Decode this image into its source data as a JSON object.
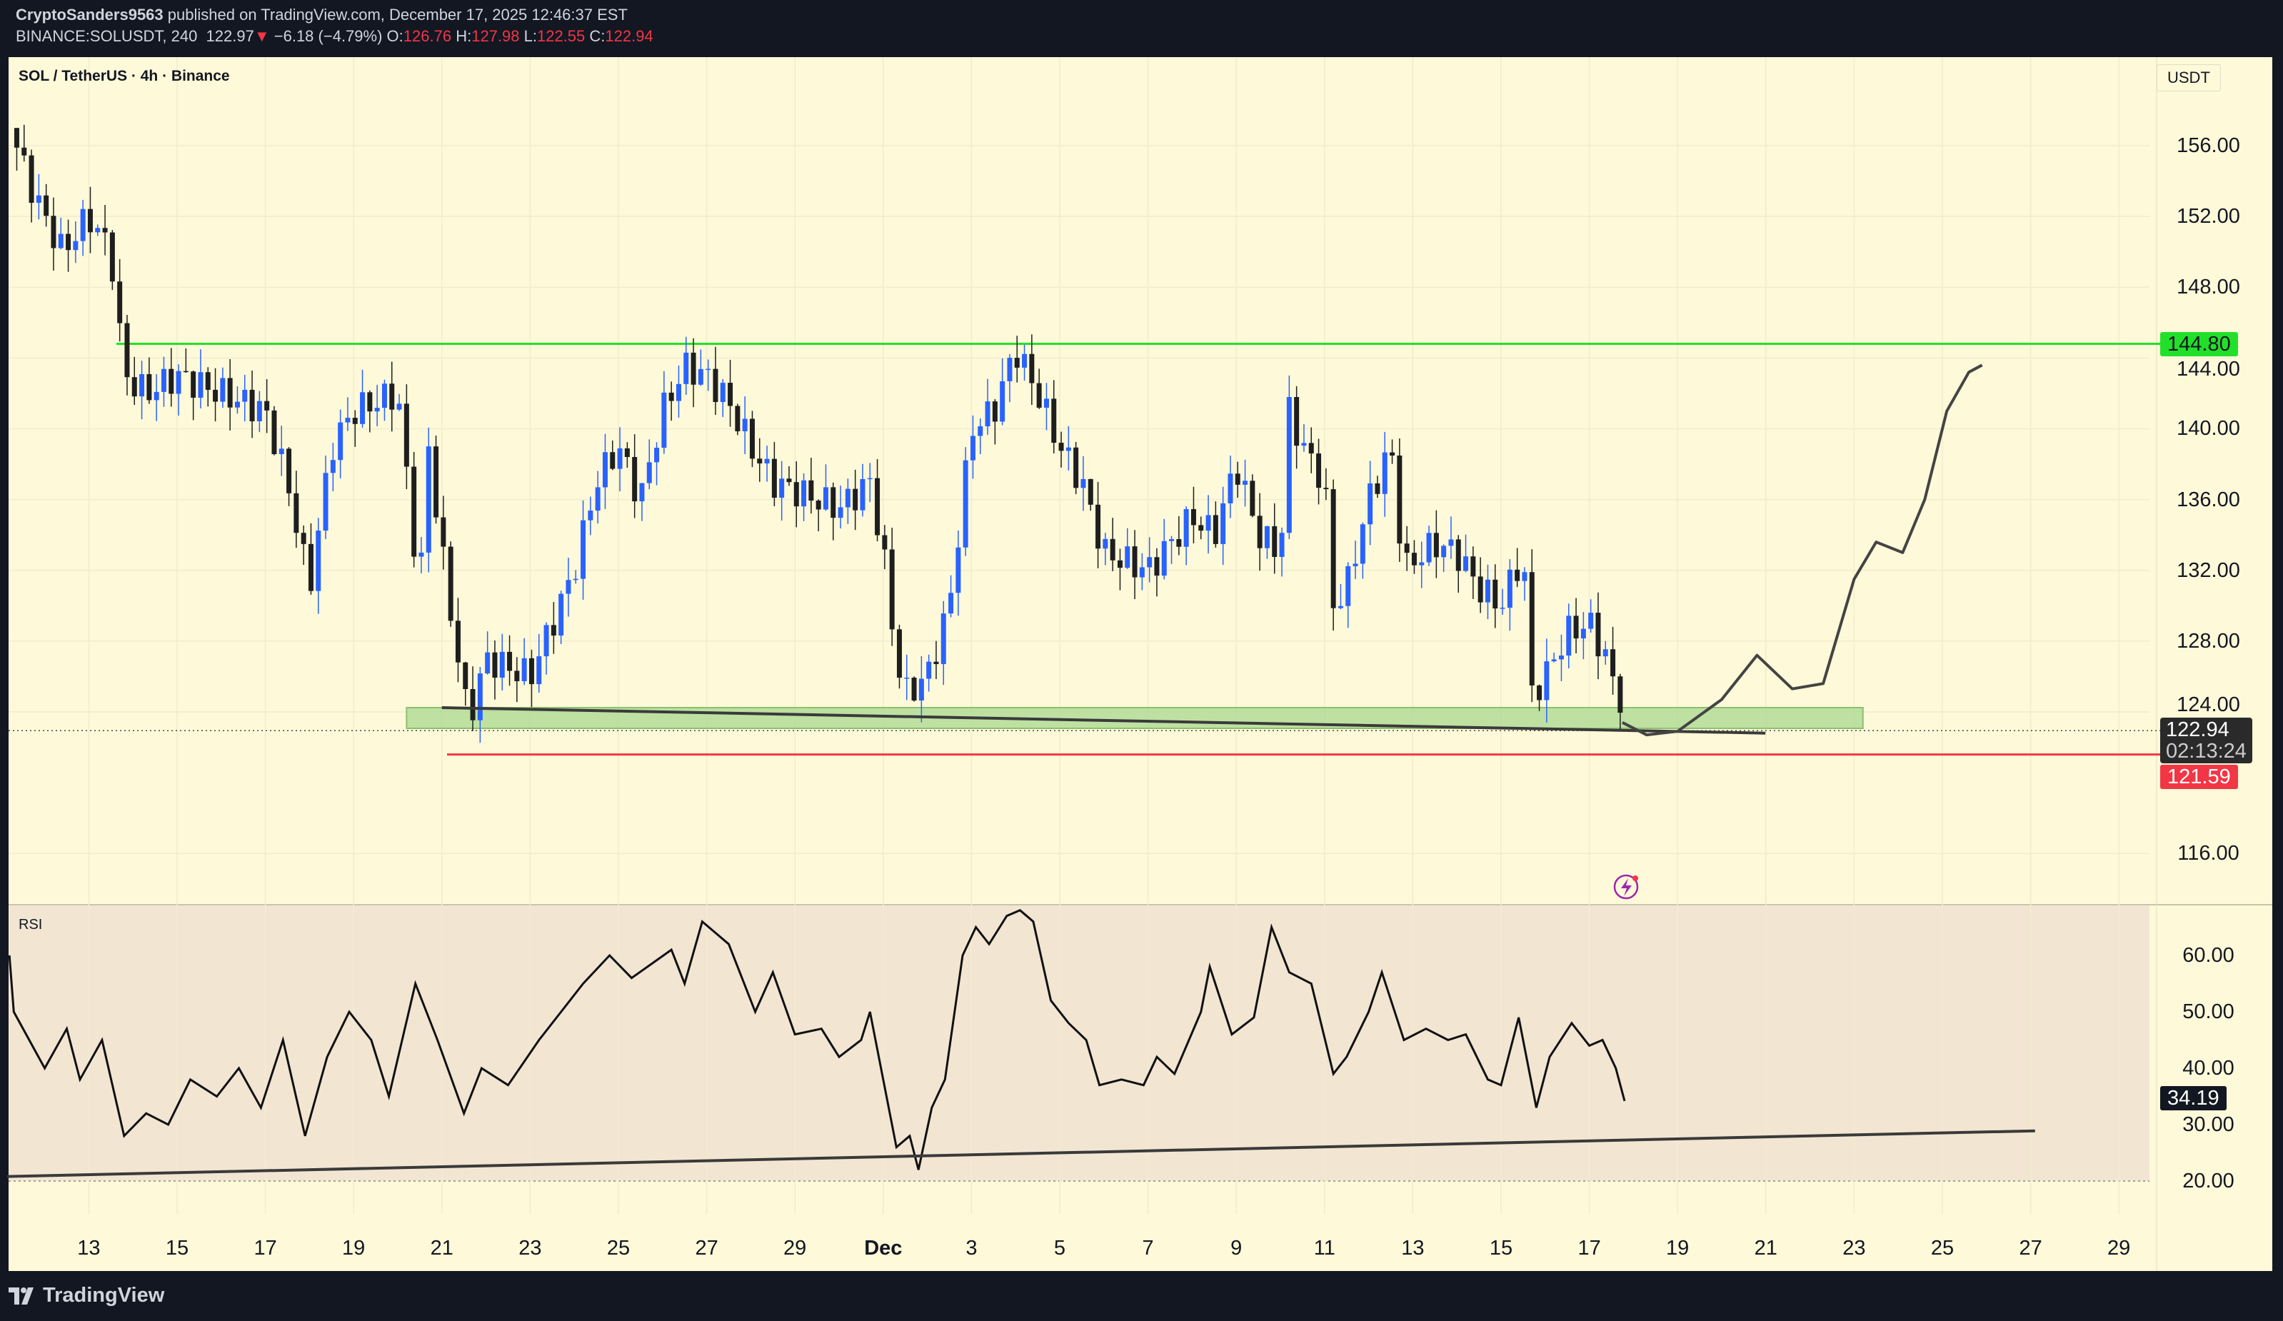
{
  "header": {
    "author": "CryptoSanders9563",
    "published": "published on TradingView.com, December 17, 2025 12:46:37 EST",
    "symbol": "BINANCE:SOLUSDT, 240",
    "last": "122.97",
    "change": "−6.18 (−4.79%)",
    "o_label": "O:",
    "o": "126.76",
    "h_label": "H:",
    "h": "127.98",
    "l_label": "L:",
    "l": "122.55",
    "c_label": "C:",
    "c": "122.94"
  },
  "chart_title": "SOL / TetherUS · 4h · Binance",
  "currency": "USDT",
  "rsi_label": "RSI",
  "logo": "TradingView",
  "colors": {
    "up": "#2962ff",
    "down": "#1e1e1e",
    "resistance": "#22e02a",
    "support": "#f23645",
    "zone": "#a8d890",
    "bg": "#fef9d8",
    "rsi_bg": "#f2e6d3"
  },
  "tags": {
    "resistance": "144.80",
    "last": "122.94",
    "countdown": "02:13:24",
    "support": "121.59",
    "rsi": "34.19"
  },
  "chart_data": [
    {
      "type": "candlestick",
      "title": "SOL / TetherUS · 4h · Binance",
      "x_unit": "days since Nov 13",
      "price_axis": [
        "156.00",
        "152.00",
        "148.00",
        "144.00",
        "140.00",
        "136.00",
        "132.00",
        "128.00",
        "124.00",
        "116.00"
      ],
      "price_ticks": [
        156,
        152,
        148,
        144,
        140,
        136,
        132,
        128,
        124,
        116
      ],
      "time_axis": [
        {
          "t": 0,
          "label": "13"
        },
        {
          "t": 2,
          "label": "15"
        },
        {
          "t": 4,
          "label": "17"
        },
        {
          "t": 6,
          "label": "19"
        },
        {
          "t": 8,
          "label": "21"
        },
        {
          "t": 10,
          "label": "23"
        },
        {
          "t": 12,
          "label": "25"
        },
        {
          "t": 14,
          "label": "27"
        },
        {
          "t": 16,
          "label": "29"
        },
        {
          "t": 18,
          "label": "Dec"
        },
        {
          "t": 20,
          "label": "3"
        },
        {
          "t": 22,
          "label": "5"
        },
        {
          "t": 24,
          "label": "7"
        },
        {
          "t": 26,
          "label": "9"
        },
        {
          "t": 28,
          "label": "11"
        },
        {
          "t": 30,
          "label": "13"
        },
        {
          "t": 32,
          "label": "15"
        },
        {
          "t": 34,
          "label": "17"
        },
        {
          "t": 36,
          "label": "19"
        },
        {
          "t": 38,
          "label": "21"
        },
        {
          "t": 40,
          "label": "23"
        },
        {
          "t": 42,
          "label": "25"
        },
        {
          "t": 44,
          "label": "27"
        },
        {
          "t": 46,
          "label": "29"
        }
      ],
      "close_path": [
        [
          -1.8,
          157
        ],
        [
          -1.2,
          153
        ],
        [
          -0.6,
          150
        ],
        [
          0,
          152
        ],
        [
          0.5,
          150
        ],
        [
          0.8,
          143
        ],
        [
          1.3,
          142
        ],
        [
          2,
          143
        ],
        [
          3,
          142
        ],
        [
          4,
          141
        ],
        [
          4.5,
          137
        ],
        [
          5,
          131
        ],
        [
          5.5,
          139
        ],
        [
          6,
          141
        ],
        [
          7,
          142
        ],
        [
          7.3,
          135
        ],
        [
          7.5,
          131
        ],
        [
          7.7,
          139
        ],
        [
          8,
          133
        ],
        [
          8.3,
          128
        ],
        [
          8.6,
          123.5
        ],
        [
          9,
          127
        ],
        [
          10,
          126
        ],
        [
          10.5,
          129
        ],
        [
          11,
          132
        ],
        [
          11.5,
          137
        ],
        [
          12,
          139
        ],
        [
          12.5,
          136
        ],
        [
          13,
          141
        ],
        [
          13.5,
          143.5
        ],
        [
          14,
          143
        ],
        [
          14.5,
          141.5
        ],
        [
          15,
          139
        ],
        [
          15.5,
          137
        ],
        [
          16,
          136.5
        ],
        [
          17,
          135.5
        ],
        [
          17.7,
          137
        ],
        [
          18,
          133
        ],
        [
          18.3,
          127
        ],
        [
          18.5,
          125
        ],
        [
          19,
          126
        ],
        [
          19.5,
          130
        ],
        [
          20,
          140
        ],
        [
          20.5,
          141
        ],
        [
          21,
          144.5
        ],
        [
          21.5,
          142
        ],
        [
          22,
          139
        ],
        [
          22.5,
          137
        ],
        [
          23,
          133
        ],
        [
          23.5,
          132.5
        ],
        [
          24,
          132
        ],
        [
          25,
          135
        ],
        [
          25.5,
          134
        ],
        [
          26,
          138
        ],
        [
          26.5,
          134
        ],
        [
          27,
          133
        ],
        [
          27.2,
          141
        ],
        [
          27.5,
          139
        ],
        [
          28,
          137
        ],
        [
          28.2,
          130
        ],
        [
          28.5,
          131
        ],
        [
          29,
          136
        ],
        [
          29.5,
          139
        ],
        [
          29.8,
          132
        ],
        [
          30,
          132.5
        ],
        [
          30.5,
          133.5
        ],
        [
          31,
          133
        ],
        [
          31.5,
          131
        ],
        [
          32,
          130
        ],
        [
          32.5,
          133
        ],
        [
          32.7,
          125
        ],
        [
          33,
          126
        ],
        [
          33.5,
          128.5
        ],
        [
          34,
          129
        ],
        [
          34.4,
          127
        ],
        [
          34.8,
          122.94
        ]
      ],
      "levels": {
        "resistance": 144.8,
        "support": 121.59,
        "last": 122.94
      },
      "zone": {
        "t0": 7.2,
        "t1": 40.2,
        "low": 123.07,
        "high": 124.24
      },
      "trendline": [
        [
          7.999,
          124.24
        ],
        [
          37.99,
          122.8
        ]
      ],
      "projection": [
        [
          34.75,
          123.4
        ],
        [
          35.3,
          122.7
        ],
        [
          36,
          122.9
        ],
        [
          37,
          124.7
        ],
        [
          37.8,
          127.2
        ],
        [
          38.6,
          125.3
        ],
        [
          39.3,
          125.6
        ],
        [
          40,
          131.5
        ],
        [
          40.5,
          133.6
        ],
        [
          41.1,
          133.0
        ],
        [
          41.6,
          136
        ],
        [
          42.1,
          141
        ],
        [
          42.6,
          143.2
        ],
        [
          42.9,
          143.6
        ]
      ],
      "price_range": [
        112.5,
        161.5
      ]
    },
    {
      "type": "line",
      "title": "RSI",
      "y_axis": [
        "60.00",
        "50.00",
        "40.00",
        "30.00",
        "20.00"
      ],
      "y_ticks": [
        60,
        50,
        40,
        30,
        20
      ],
      "ylim": [
        15.5,
        70
      ],
      "values": [
        [
          -1.8,
          60
        ],
        [
          -1.7,
          50
        ],
        [
          -1.0,
          40
        ],
        [
          -0.5,
          47
        ],
        [
          -0.2,
          38
        ],
        [
          0.3,
          45
        ],
        [
          0.8,
          28
        ],
        [
          1.3,
          32
        ],
        [
          1.8,
          30
        ],
        [
          2.3,
          38
        ],
        [
          2.9,
          35
        ],
        [
          3.4,
          40
        ],
        [
          3.9,
          33
        ],
        [
          4.4,
          45
        ],
        [
          4.9,
          28
        ],
        [
          5.4,
          42
        ],
        [
          5.9,
          50
        ],
        [
          6.4,
          45
        ],
        [
          6.8,
          35
        ],
        [
          7.4,
          55
        ],
        [
          7.9,
          45
        ],
        [
          8.5,
          32
        ],
        [
          8.9,
          40
        ],
        [
          9.5,
          37
        ],
        [
          10.2,
          45
        ],
        [
          10.7,
          50
        ],
        [
          11.2,
          55
        ],
        [
          11.8,
          60
        ],
        [
          12.3,
          56
        ],
        [
          13.2,
          61
        ],
        [
          13.5,
          55
        ],
        [
          13.9,
          66
        ],
        [
          14.5,
          62
        ],
        [
          15.1,
          50
        ],
        [
          15.5,
          57
        ],
        [
          16.0,
          46
        ],
        [
          16.6,
          47
        ],
        [
          17.0,
          42
        ],
        [
          17.5,
          45
        ],
        [
          17.7,
          50
        ],
        [
          18.0,
          38
        ],
        [
          18.3,
          26
        ],
        [
          18.6,
          28
        ],
        [
          18.8,
          22
        ],
        [
          19.1,
          33
        ],
        [
          19.4,
          38
        ],
        [
          19.8,
          60
        ],
        [
          20.1,
          65
        ],
        [
          20.4,
          62
        ],
        [
          20.8,
          67
        ],
        [
          21.1,
          68
        ],
        [
          21.4,
          66
        ],
        [
          21.8,
          52
        ],
        [
          22.2,
          48
        ],
        [
          22.6,
          45
        ],
        [
          22.9,
          37
        ],
        [
          23.4,
          38
        ],
        [
          23.9,
          37
        ],
        [
          24.2,
          42
        ],
        [
          24.6,
          39
        ],
        [
          25.2,
          50
        ],
        [
          25.4,
          58
        ],
        [
          25.9,
          46
        ],
        [
          26.4,
          49
        ],
        [
          26.8,
          65
        ],
        [
          27.2,
          57
        ],
        [
          27.7,
          55
        ],
        [
          28.2,
          39
        ],
        [
          28.5,
          42
        ],
        [
          29.0,
          50
        ],
        [
          29.3,
          57
        ],
        [
          29.8,
          45
        ],
        [
          30.3,
          47
        ],
        [
          30.8,
          45
        ],
        [
          31.2,
          46
        ],
        [
          31.7,
          38
        ],
        [
          32.0,
          37
        ],
        [
          32.4,
          49
        ],
        [
          32.8,
          33
        ],
        [
          33.1,
          42
        ],
        [
          33.6,
          48
        ],
        [
          34.0,
          44
        ],
        [
          34.3,
          45
        ],
        [
          34.6,
          40
        ],
        [
          34.8,
          34.19
        ]
      ],
      "trendline": [
        [
          -1.85,
          20.8
        ],
        [
          44.1,
          28.9
        ]
      ]
    }
  ]
}
